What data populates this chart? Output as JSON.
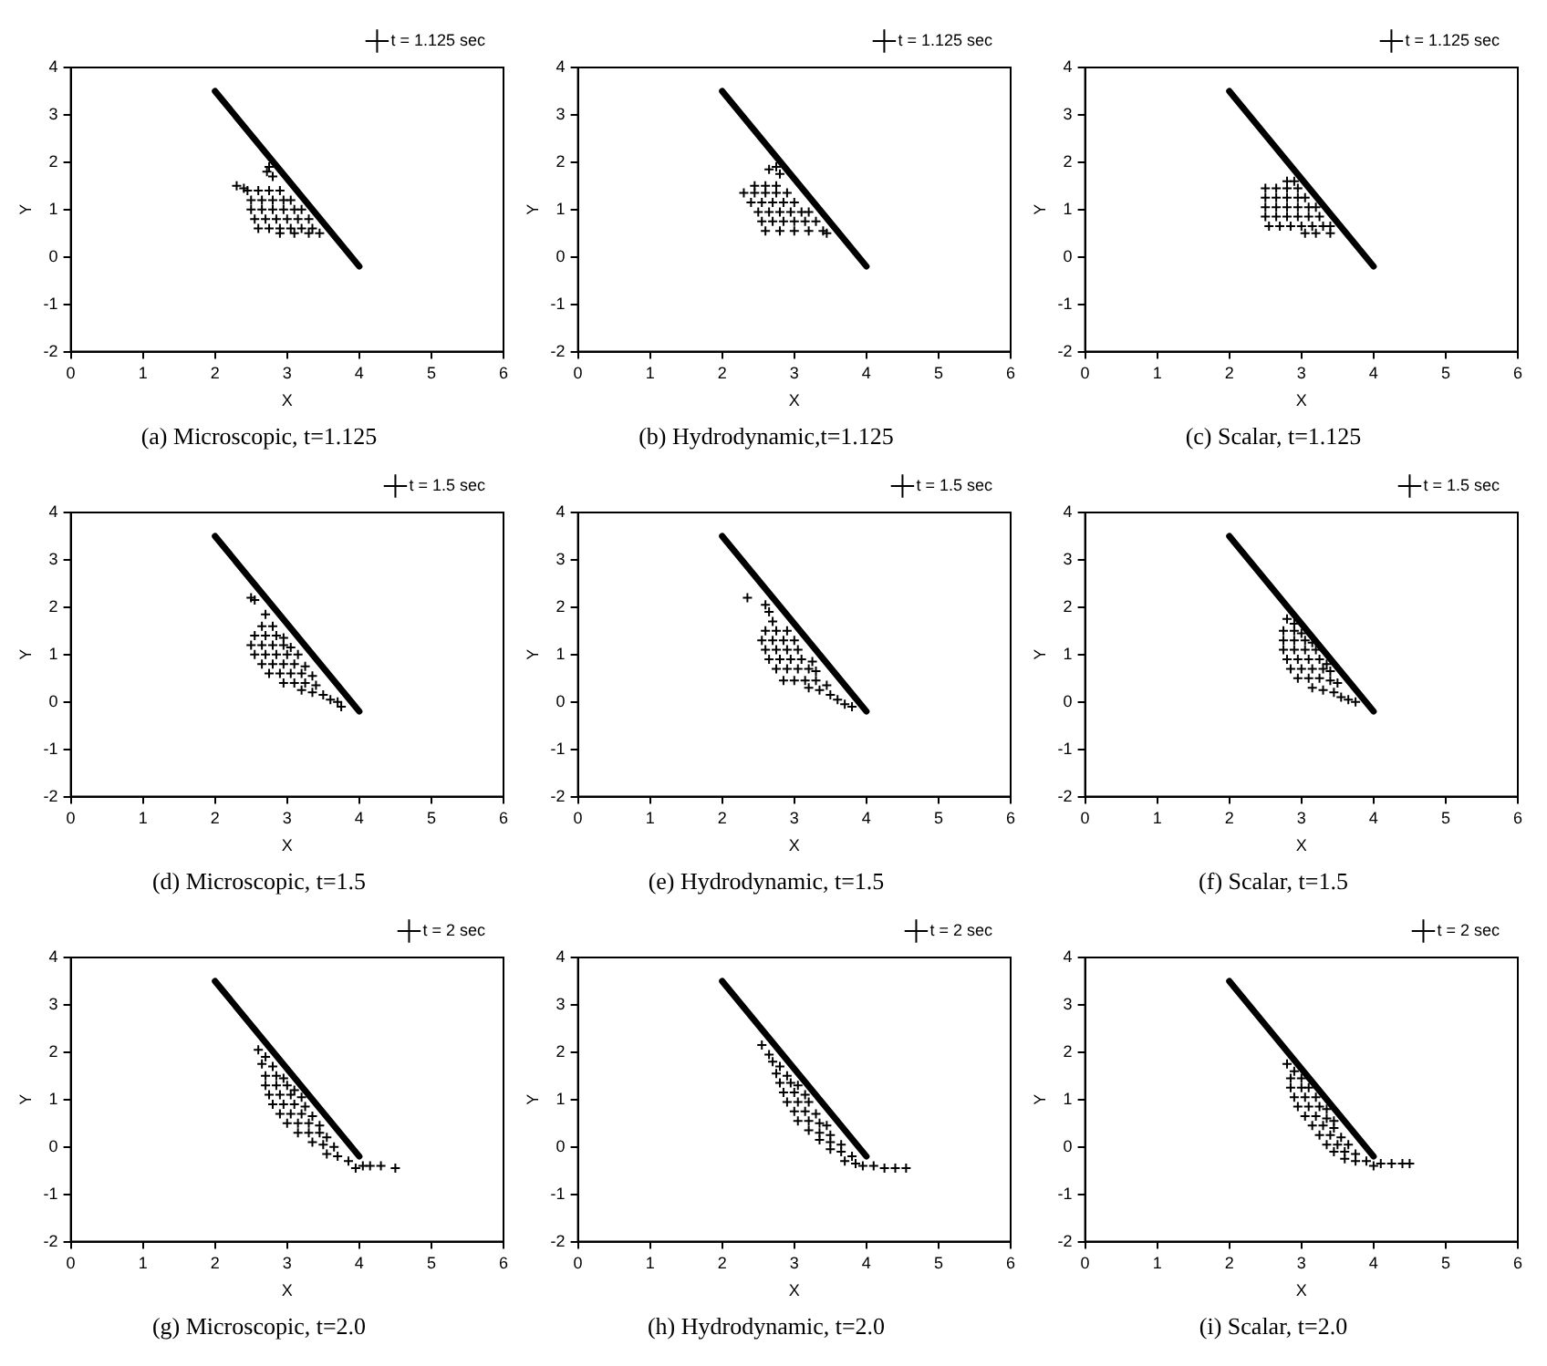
{
  "chart_data": [
    {
      "type": "scatter",
      "title": "(a) Microscopic, t=1.125",
      "xlabel": "X",
      "ylabel": "Y",
      "xlim": [
        0,
        6
      ],
      "ylim": [
        -2,
        4
      ],
      "xticks": [
        0,
        1,
        2,
        3,
        4,
        5,
        6
      ],
      "yticks": [
        -2,
        -1,
        0,
        1,
        2,
        3,
        4
      ],
      "grid": false,
      "legend": "top right",
      "marker": "cross",
      "series": [
        {
          "name": "t = 1.125 sec",
          "color": "#000000",
          "x": [
            2.75,
            2.72,
            2.8,
            2.3,
            2.4,
            2.45,
            2.6,
            2.75,
            2.9,
            2.5,
            2.65,
            2.8,
            2.95,
            3.05,
            2.5,
            2.65,
            2.8,
            2.95,
            3.1,
            3.2,
            2.55,
            2.7,
            2.85,
            3.0,
            3.15,
            3.3,
            2.6,
            2.75,
            2.9,
            3.05,
            3.2,
            3.35,
            2.9,
            3.1,
            3.3,
            3.45
          ],
          "values": [
            1.9,
            1.8,
            1.7,
            1.5,
            1.45,
            1.4,
            1.4,
            1.4,
            1.4,
            1.2,
            1.2,
            1.2,
            1.2,
            1.2,
            1.0,
            1.0,
            1.0,
            1.0,
            1.0,
            1.0,
            0.8,
            0.8,
            0.8,
            0.8,
            0.8,
            0.8,
            0.6,
            0.6,
            0.6,
            0.6,
            0.6,
            0.6,
            0.5,
            0.5,
            0.5,
            0.5
          ]
        },
        {
          "type": "line",
          "color": "#000000",
          "marker": "none",
          "x": [
            2,
            4
          ],
          "values": [
            3.5,
            -0.2
          ]
        }
      ]
    },
    {
      "type": "scatter",
      "title": "(b) Hydrodynamic,t=1.125",
      "xlabel": "X",
      "ylabel": "Y",
      "xlim": [
        0,
        6
      ],
      "ylim": [
        -2,
        4
      ],
      "xticks": [
        0,
        1,
        2,
        3,
        4,
        5,
        6
      ],
      "yticks": [
        -2,
        -1,
        0,
        1,
        2,
        3,
        4
      ],
      "grid": false,
      "legend": "top right",
      "marker": "cross",
      "series": [
        {
          "name": "t = 1.125 sec",
          "color": "#000000",
          "x": [
            2.65,
            2.75,
            2.8,
            2.45,
            2.6,
            2.75,
            2.3,
            2.45,
            2.6,
            2.75,
            2.9,
            2.4,
            2.55,
            2.7,
            2.85,
            3.0,
            2.5,
            2.65,
            2.8,
            2.95,
            3.1,
            3.2,
            2.55,
            2.7,
            2.85,
            3.0,
            3.15,
            3.3,
            2.6,
            2.8,
            3.0,
            3.2,
            3.4,
            3.45
          ],
          "values": [
            1.85,
            1.9,
            1.75,
            1.5,
            1.5,
            1.5,
            1.35,
            1.35,
            1.35,
            1.35,
            1.35,
            1.15,
            1.15,
            1.15,
            1.15,
            1.15,
            0.95,
            0.95,
            0.95,
            0.95,
            0.95,
            0.95,
            0.75,
            0.75,
            0.75,
            0.75,
            0.75,
            0.75,
            0.55,
            0.55,
            0.55,
            0.55,
            0.55,
            0.5
          ]
        },
        {
          "type": "line",
          "color": "#000000",
          "marker": "none",
          "x": [
            2,
            4
          ],
          "values": [
            3.5,
            -0.2
          ]
        }
      ]
    },
    {
      "type": "scatter",
      "title": "(c) Scalar, t=1.125",
      "xlabel": "X",
      "ylabel": "Y",
      "xlim": [
        0,
        6
      ],
      "ylim": [
        -2,
        4
      ],
      "xticks": [
        0,
        1,
        2,
        3,
        4,
        5,
        6
      ],
      "yticks": [
        -2,
        -1,
        0,
        1,
        2,
        3,
        4
      ],
      "grid": false,
      "legend": "top right",
      "marker": "cross",
      "series": [
        {
          "name": "t = 1.125 sec",
          "color": "#000000",
          "x": [
            2.8,
            2.9,
            2.5,
            2.65,
            2.8,
            2.95,
            2.5,
            2.65,
            2.8,
            2.95,
            3.05,
            2.5,
            2.65,
            2.8,
            2.95,
            3.1,
            3.2,
            2.5,
            2.65,
            2.8,
            2.95,
            3.1,
            3.25,
            2.55,
            2.7,
            2.85,
            3.0,
            3.15,
            3.3,
            3.4,
            3.05,
            3.2,
            3.4
          ],
          "values": [
            1.6,
            1.6,
            1.45,
            1.45,
            1.45,
            1.45,
            1.25,
            1.25,
            1.25,
            1.25,
            1.25,
            1.05,
            1.05,
            1.05,
            1.05,
            1.05,
            1.05,
            0.85,
            0.85,
            0.85,
            0.85,
            0.85,
            0.85,
            0.65,
            0.65,
            0.65,
            0.65,
            0.65,
            0.65,
            0.65,
            0.5,
            0.5,
            0.5
          ]
        },
        {
          "type": "line",
          "color": "#000000",
          "marker": "none",
          "x": [
            2,
            4
          ],
          "values": [
            3.5,
            -0.2
          ]
        }
      ]
    },
    {
      "type": "scatter",
      "title": "(d) Microscopic, t=1.5",
      "xlabel": "X",
      "ylabel": "Y",
      "xlim": [
        0,
        6
      ],
      "ylim": [
        -2,
        4
      ],
      "xticks": [
        0,
        1,
        2,
        3,
        4,
        5,
        6
      ],
      "yticks": [
        -2,
        -1,
        0,
        1,
        2,
        3,
        4
      ],
      "grid": false,
      "legend": "top right",
      "marker": "cross",
      "series": [
        {
          "name": "t = 1.5 sec",
          "color": "#000000",
          "x": [
            2.5,
            2.55,
            2.7,
            2.65,
            2.8,
            2.55,
            2.7,
            2.85,
            2.95,
            2.5,
            2.65,
            2.8,
            2.95,
            3.05,
            2.55,
            2.7,
            2.85,
            3.0,
            3.15,
            2.65,
            2.8,
            2.95,
            3.1,
            3.25,
            2.75,
            2.9,
            3.05,
            3.2,
            3.35,
            2.95,
            3.1,
            3.25,
            3.4,
            3.2,
            3.35,
            3.5,
            3.6,
            3.7,
            3.75
          ],
          "values": [
            2.2,
            2.15,
            1.85,
            1.6,
            1.6,
            1.4,
            1.4,
            1.4,
            1.35,
            1.2,
            1.2,
            1.2,
            1.2,
            1.15,
            1.0,
            1.0,
            1.0,
            1.0,
            1.0,
            0.8,
            0.8,
            0.8,
            0.8,
            0.75,
            0.6,
            0.6,
            0.6,
            0.6,
            0.55,
            0.4,
            0.4,
            0.4,
            0.35,
            0.25,
            0.2,
            0.15,
            0.05,
            0.0,
            -0.1
          ]
        },
        {
          "type": "line",
          "color": "#000000",
          "marker": "none",
          "x": [
            2,
            4
          ],
          "values": [
            3.5,
            -0.2
          ]
        }
      ]
    },
    {
      "type": "scatter",
      "title": "(e) Hydrodynamic, t=1.5",
      "xlabel": "X",
      "ylabel": "Y",
      "xlim": [
        0,
        6
      ],
      "ylim": [
        -2,
        4
      ],
      "xticks": [
        0,
        1,
        2,
        3,
        4,
        5,
        6
      ],
      "yticks": [
        -2,
        -1,
        0,
        1,
        2,
        3,
        4
      ],
      "grid": false,
      "legend": "top right",
      "marker": "cross",
      "series": [
        {
          "name": "t = 1.5 sec",
          "color": "#000000",
          "x": [
            2.35,
            2.6,
            2.65,
            2.7,
            2.6,
            2.75,
            2.9,
            2.55,
            2.7,
            2.85,
            3.0,
            2.6,
            2.75,
            2.9,
            3.05,
            2.65,
            2.8,
            2.95,
            3.1,
            3.25,
            2.75,
            2.9,
            3.05,
            3.2,
            3.3,
            2.85,
            3.0,
            3.15,
            3.3,
            3.45,
            3.2,
            3.35,
            3.5,
            3.6,
            3.7,
            3.8
          ],
          "values": [
            2.2,
            2.05,
            1.9,
            1.7,
            1.5,
            1.5,
            1.5,
            1.3,
            1.3,
            1.3,
            1.3,
            1.1,
            1.1,
            1.1,
            1.1,
            0.9,
            0.9,
            0.9,
            0.9,
            0.85,
            0.7,
            0.7,
            0.7,
            0.7,
            0.65,
            0.45,
            0.45,
            0.45,
            0.45,
            0.35,
            0.3,
            0.25,
            0.15,
            0.05,
            -0.05,
            -0.1
          ]
        },
        {
          "type": "line",
          "color": "#000000",
          "marker": "none",
          "x": [
            2,
            4
          ],
          "values": [
            3.5,
            -0.2
          ]
        }
      ]
    },
    {
      "type": "scatter",
      "title": "(f) Scalar, t=1.5",
      "xlabel": "X",
      "ylabel": "Y",
      "xlim": [
        0,
        6
      ],
      "ylim": [
        -2,
        4
      ],
      "xticks": [
        0,
        1,
        2,
        3,
        4,
        5,
        6
      ],
      "yticks": [
        -2,
        -1,
        0,
        1,
        2,
        3,
        4
      ],
      "grid": false,
      "legend": "top right",
      "marker": "cross",
      "series": [
        {
          "name": "t = 1.5 sec",
          "color": "#000000",
          "x": [
            2.8,
            2.9,
            2.75,
            2.9,
            3.0,
            2.75,
            2.9,
            3.05,
            3.15,
            2.75,
            2.9,
            3.05,
            3.2,
            2.8,
            2.95,
            3.1,
            3.25,
            3.35,
            2.85,
            3.0,
            3.15,
            3.3,
            3.4,
            2.95,
            3.1,
            3.25,
            3.4,
            3.5,
            3.15,
            3.3,
            3.45,
            3.55,
            3.65,
            3.75
          ],
          "values": [
            1.75,
            1.65,
            1.5,
            1.5,
            1.45,
            1.3,
            1.3,
            1.3,
            1.25,
            1.1,
            1.1,
            1.1,
            1.1,
            0.9,
            0.9,
            0.9,
            0.9,
            0.8,
            0.7,
            0.7,
            0.7,
            0.7,
            0.65,
            0.5,
            0.5,
            0.5,
            0.45,
            0.4,
            0.3,
            0.25,
            0.2,
            0.1,
            0.05,
            0.0
          ]
        },
        {
          "type": "line",
          "color": "#000000",
          "marker": "none",
          "x": [
            2,
            4
          ],
          "values": [
            3.5,
            -0.2
          ]
        }
      ]
    },
    {
      "type": "scatter",
      "title": "(g) Microscopic, t=2.0",
      "xlabel": "X",
      "ylabel": "Y",
      "xlim": [
        0,
        6
      ],
      "ylim": [
        -2,
        4
      ],
      "xticks": [
        0,
        1,
        2,
        3,
        4,
        5,
        6
      ],
      "yticks": [
        -2,
        -1,
        0,
        1,
        2,
        3,
        4
      ],
      "grid": false,
      "legend": "top right",
      "marker": "cross",
      "series": [
        {
          "name": "t = 2 sec",
          "color": "#000000",
          "x": [
            2.6,
            2.7,
            2.65,
            2.8,
            2.7,
            2.85,
            2.95,
            2.7,
            2.85,
            3.0,
            3.1,
            2.75,
            2.9,
            3.05,
            3.2,
            2.8,
            2.95,
            3.1,
            3.25,
            2.9,
            3.05,
            3.2,
            3.35,
            3.0,
            3.15,
            3.3,
            3.45,
            3.15,
            3.3,
            3.45,
            3.55,
            3.35,
            3.5,
            3.65,
            3.55,
            3.7,
            3.85,
            3.95,
            4.05,
            4.15,
            4.3,
            4.5
          ],
          "values": [
            2.05,
            1.9,
            1.75,
            1.7,
            1.5,
            1.5,
            1.45,
            1.3,
            1.3,
            1.3,
            1.2,
            1.1,
            1.1,
            1.1,
            1.05,
            0.9,
            0.9,
            0.9,
            0.85,
            0.7,
            0.7,
            0.7,
            0.65,
            0.5,
            0.5,
            0.5,
            0.45,
            0.3,
            0.3,
            0.3,
            0.2,
            0.1,
            0.05,
            0.0,
            -0.15,
            -0.2,
            -0.3,
            -0.45,
            -0.4,
            -0.4,
            -0.4,
            -0.45
          ]
        },
        {
          "type": "line",
          "color": "#000000",
          "marker": "none",
          "x": [
            2,
            4
          ],
          "values": [
            3.5,
            -0.2
          ]
        }
      ]
    },
    {
      "type": "scatter",
      "title": "(h) Hydrodynamic, t=2.0",
      "xlabel": "X",
      "ylabel": "Y",
      "xlim": [
        0,
        6
      ],
      "ylim": [
        -2,
        4
      ],
      "xticks": [
        0,
        1,
        2,
        3,
        4,
        5,
        6
      ],
      "yticks": [
        -2,
        -1,
        0,
        1,
        2,
        3,
        4
      ],
      "grid": false,
      "legend": "top right",
      "marker": "cross",
      "series": [
        {
          "name": "t = 2 sec",
          "color": "#000000",
          "x": [
            2.55,
            2.65,
            2.7,
            2.8,
            2.75,
            2.9,
            2.8,
            2.95,
            3.05,
            2.85,
            3.0,
            3.15,
            2.9,
            3.05,
            3.2,
            3.0,
            3.15,
            3.3,
            3.05,
            3.2,
            3.35,
            3.45,
            3.2,
            3.35,
            3.5,
            3.35,
            3.5,
            3.65,
            3.5,
            3.65,
            3.8,
            3.7,
            3.85,
            3.95,
            4.1,
            4.25,
            4.4,
            4.55
          ],
          "values": [
            2.15,
            1.95,
            1.8,
            1.7,
            1.55,
            1.5,
            1.35,
            1.35,
            1.3,
            1.15,
            1.15,
            1.1,
            0.95,
            0.95,
            0.95,
            0.75,
            0.75,
            0.7,
            0.55,
            0.55,
            0.5,
            0.45,
            0.35,
            0.3,
            0.25,
            0.15,
            0.1,
            0.05,
            -0.05,
            -0.1,
            -0.2,
            -0.3,
            -0.35,
            -0.4,
            -0.4,
            -0.45,
            -0.45,
            -0.45
          ]
        },
        {
          "type": "line",
          "color": "#000000",
          "marker": "none",
          "x": [
            2,
            4
          ],
          "values": [
            3.5,
            -0.2
          ]
        }
      ]
    },
    {
      "type": "scatter",
      "title": "(i) Scalar, t=2.0",
      "xlabel": "X",
      "ylabel": "Y",
      "xlim": [
        0,
        6
      ],
      "ylim": [
        -2,
        4
      ],
      "xticks": [
        0,
        1,
        2,
        3,
        4,
        5,
        6
      ],
      "yticks": [
        -2,
        -1,
        0,
        1,
        2,
        3,
        4
      ],
      "grid": false,
      "legend": "top right",
      "marker": "cross",
      "series": [
        {
          "name": "t = 2 sec",
          "color": "#000000",
          "x": [
            2.8,
            2.9,
            2.85,
            3.0,
            2.85,
            3.0,
            3.1,
            2.9,
            3.05,
            3.2,
            2.95,
            3.1,
            3.25,
            3.35,
            3.05,
            3.2,
            3.35,
            3.45,
            3.15,
            3.3,
            3.45,
            3.25,
            3.4,
            3.55,
            3.35,
            3.5,
            3.65,
            3.45,
            3.6,
            3.75,
            3.6,
            3.75,
            3.9,
            4.0,
            4.1,
            4.25,
            4.4,
            4.5
          ],
          "values": [
            1.75,
            1.6,
            1.45,
            1.45,
            1.25,
            1.25,
            1.25,
            1.05,
            1.05,
            1.05,
            0.85,
            0.85,
            0.85,
            0.8,
            0.65,
            0.65,
            0.6,
            0.55,
            0.45,
            0.45,
            0.4,
            0.25,
            0.25,
            0.2,
            0.05,
            0.05,
            0.05,
            -0.1,
            -0.1,
            -0.15,
            -0.25,
            -0.3,
            -0.3,
            -0.4,
            -0.35,
            -0.35,
            -0.35,
            -0.35
          ]
        },
        {
          "type": "line",
          "color": "#000000",
          "marker": "none",
          "x": [
            2,
            4
          ],
          "values": [
            3.5,
            -0.2
          ]
        }
      ]
    }
  ]
}
